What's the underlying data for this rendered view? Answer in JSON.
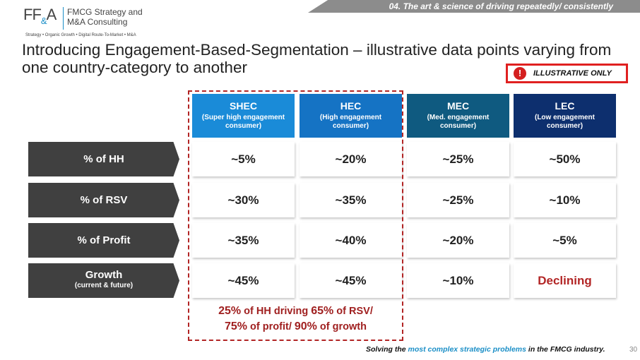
{
  "logo": {
    "mark_ff": "FF",
    "mark_amp": "&",
    "mark_a": "A",
    "name": "FMCG Strategy and\nM&A Consulting",
    "tagline": "Strategy • Organic Growth • Digital Route-To-Market • M&A"
  },
  "banner": {
    "text": "04. The art & science of driving repeatedly/ consistently"
  },
  "title": "Introducing Engagement-Based-Segmentation – illustrative data points varying from one country-category to another",
  "badge": {
    "icon_symbol": "!",
    "text": "ILLUSTRATIVE ONLY",
    "icon": "exclamation-circle-icon"
  },
  "segments": [
    {
      "name": "SHEC",
      "desc": "(Super high engagement consumer)",
      "color": "#1a8bd8"
    },
    {
      "name": "HEC",
      "desc": "(High engagement consumer)",
      "color": "#1573c4"
    },
    {
      "name": "MEC",
      "desc": "(Med. engagement consumer)",
      "color": "#0f5a80"
    },
    {
      "name": "LEC",
      "desc": "(Low engagement consumer)",
      "color": "#0d2f6e"
    }
  ],
  "rows": [
    {
      "label": "% of HH",
      "sub": "",
      "values": [
        "~5%",
        "~20%",
        "~25%",
        "~50%"
      ]
    },
    {
      "label": "% of RSV",
      "sub": "",
      "values": [
        "~30%",
        "~35%",
        "~25%",
        "~10%"
      ]
    },
    {
      "label": "% of Profit",
      "sub": "",
      "values": [
        "~35%",
        "~40%",
        "~20%",
        "~5%"
      ]
    },
    {
      "label": "Growth",
      "sub": "(current & future)",
      "values": [
        "~45%",
        "~45%",
        "~10%",
        "Declining"
      ]
    }
  ],
  "summary": {
    "p1": "25%",
    "t1": " of HH driving ",
    "p2": "65%",
    "t2": " of RSV/",
    "p3": "75%",
    "t3": " of profit/ ",
    "p4": "90%",
    "t4": " of growth"
  },
  "footer": {
    "pre": "Solving the ",
    "highlight": "most complex strategic problems",
    "post": " in the FMCG industry.",
    "page": "30"
  },
  "colors": {
    "accent_red": "#b22525",
    "label_gray": "#404040",
    "brand_blue": "#1b8fc7"
  }
}
